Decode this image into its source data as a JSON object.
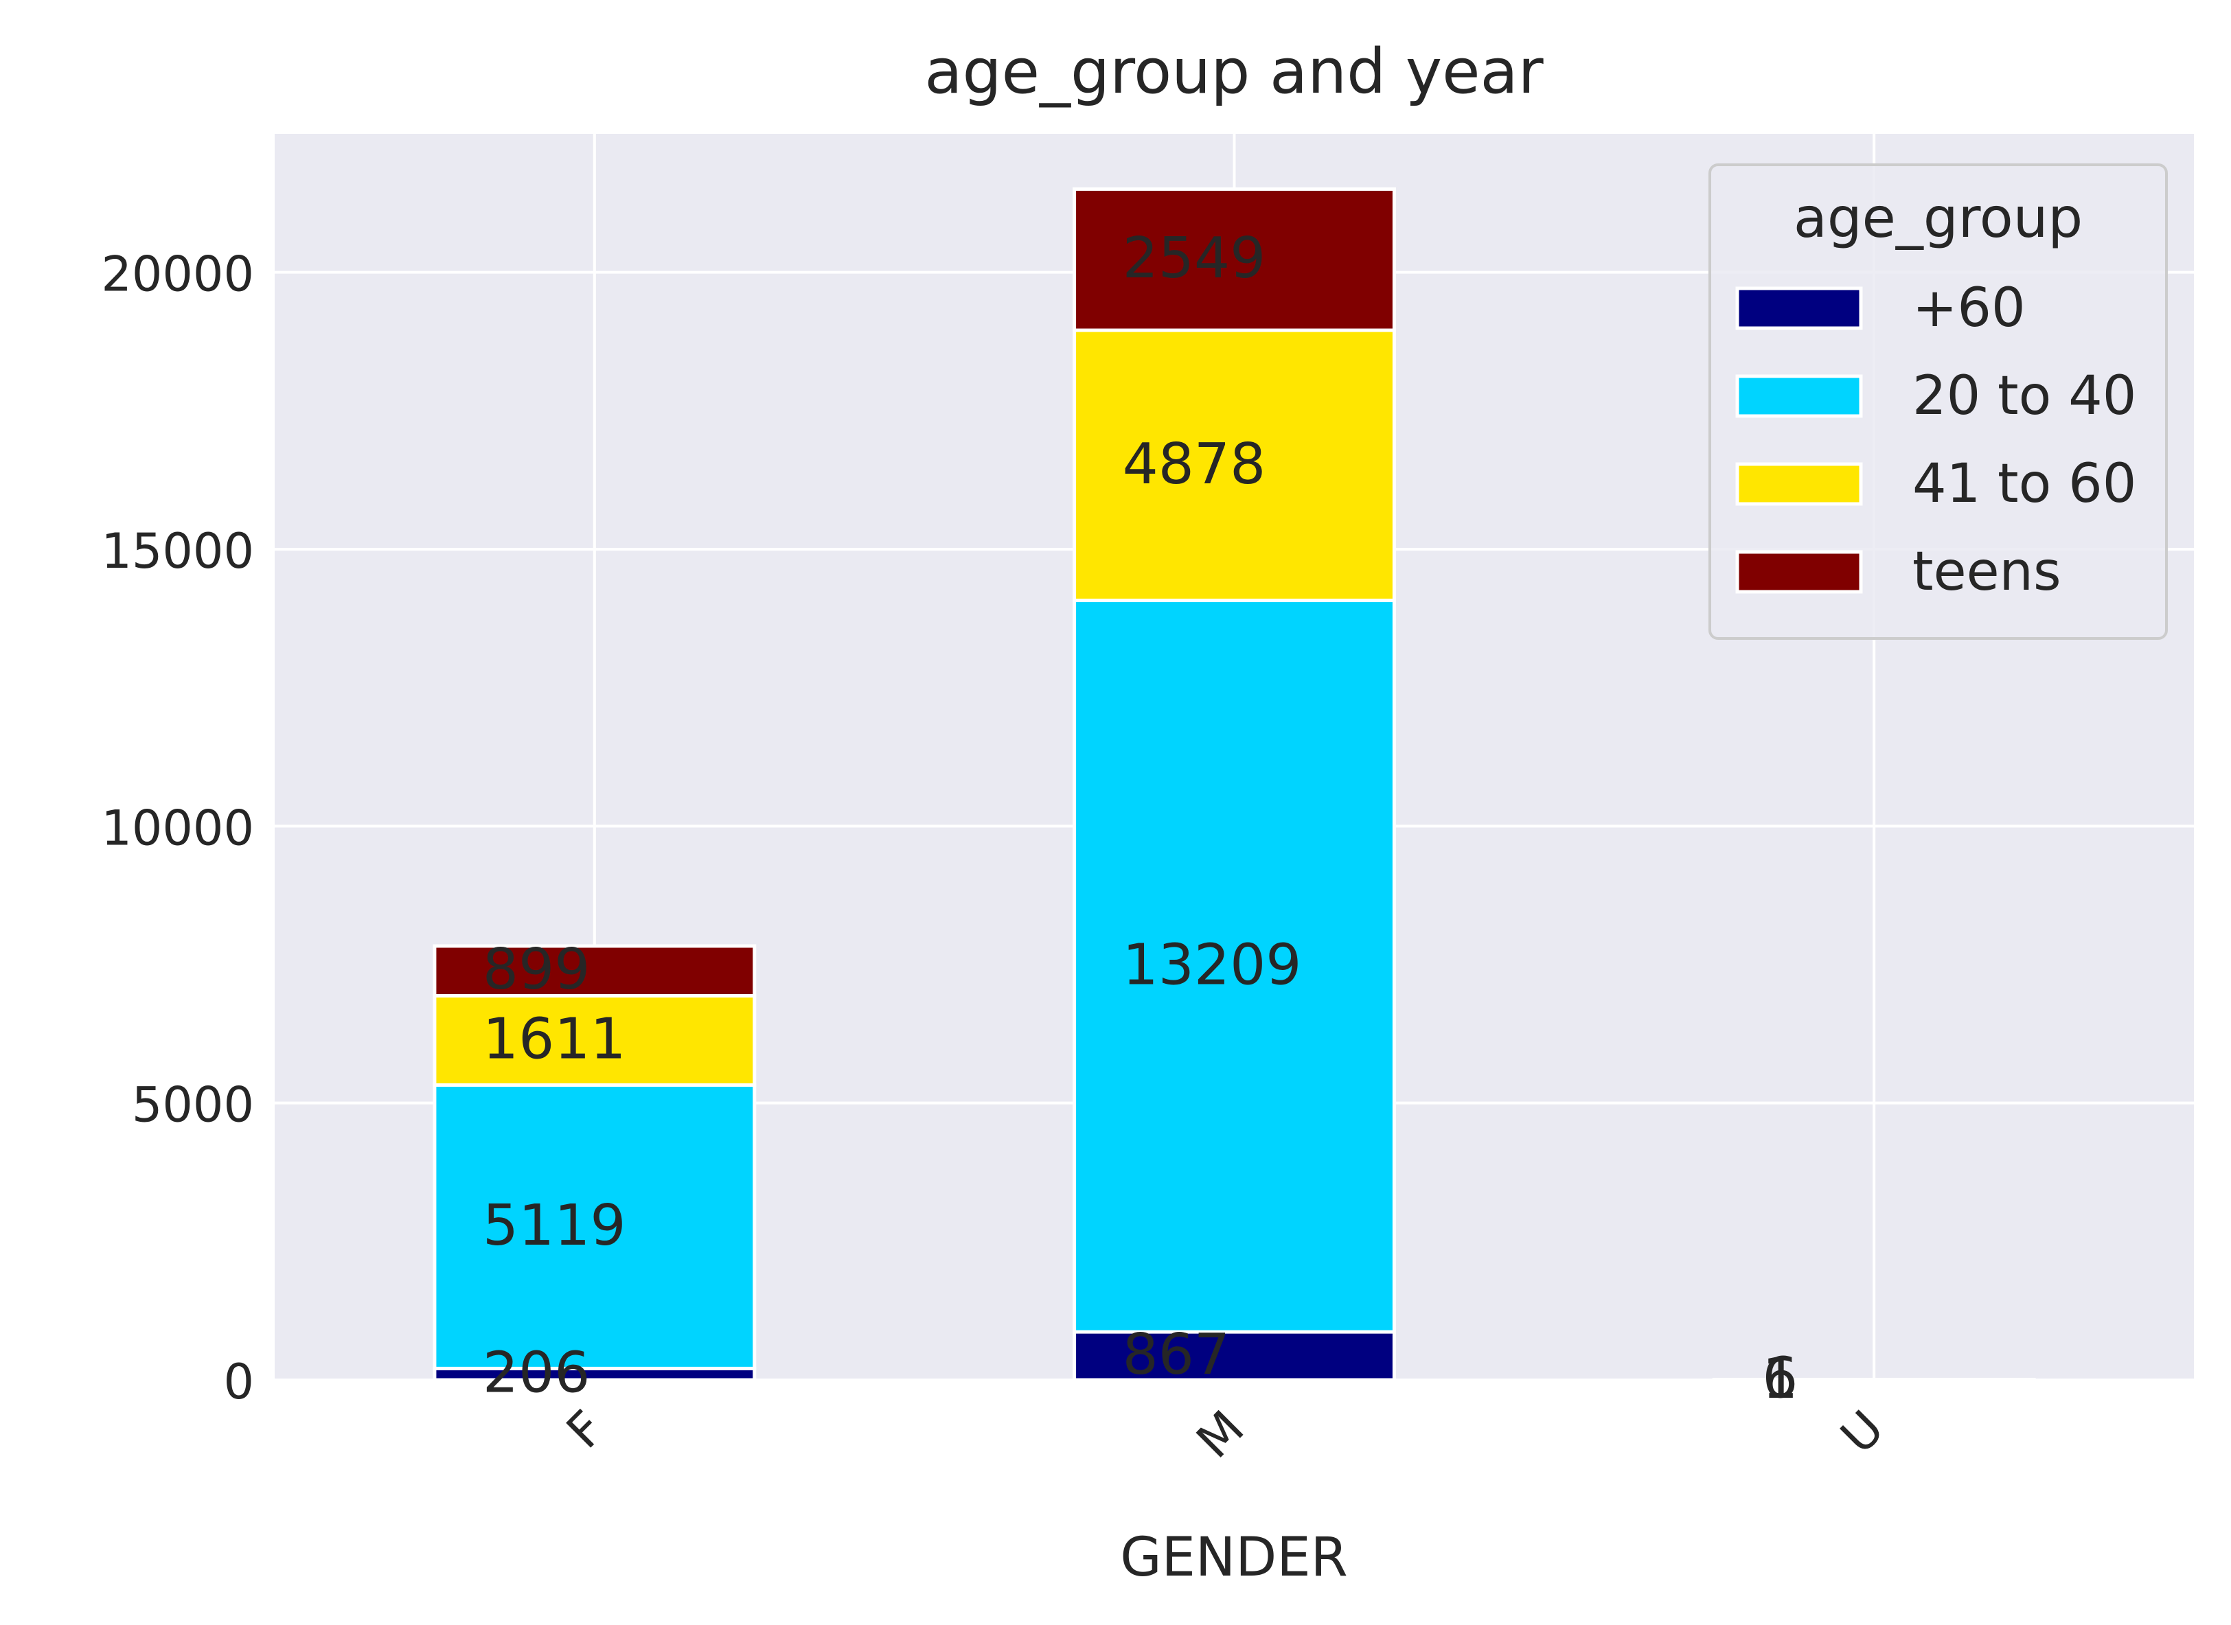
{
  "chart_data": {
    "type": "bar",
    "stacked": true,
    "title": "age_group and year",
    "xlabel": "GENDER",
    "ylabel": "",
    "categories": [
      "F",
      "M",
      "U"
    ],
    "ylim": [
      0,
      22500
    ],
    "yticks": [
      0,
      5000,
      10000,
      15000,
      20000
    ],
    "ytick_labels": [
      "0",
      "5000",
      "10000",
      "15000",
      "20000"
    ],
    "grid": true,
    "legend": {
      "title": "age_group",
      "placement": "top-right"
    },
    "series": [
      {
        "name": "+60",
        "color": "#000080",
        "values": [
          206,
          867,
          1
        ],
        "labels": [
          "206",
          "867",
          "1"
        ]
      },
      {
        "name": "20 to 40",
        "color": "#00d4ff",
        "values": [
          5119,
          13209,
          6
        ],
        "labels": [
          "5119",
          "13209",
          "6"
        ]
      },
      {
        "name": "41 to 60",
        "color": "#ffe600",
        "values": [
          1611,
          4878,
          0
        ],
        "labels": [
          "1611",
          "4878",
          ""
        ]
      },
      {
        "name": "teens",
        "color": "#800000",
        "values": [
          899,
          2549,
          0
        ],
        "labels": [
          "899",
          "2549",
          ""
        ]
      }
    ]
  }
}
